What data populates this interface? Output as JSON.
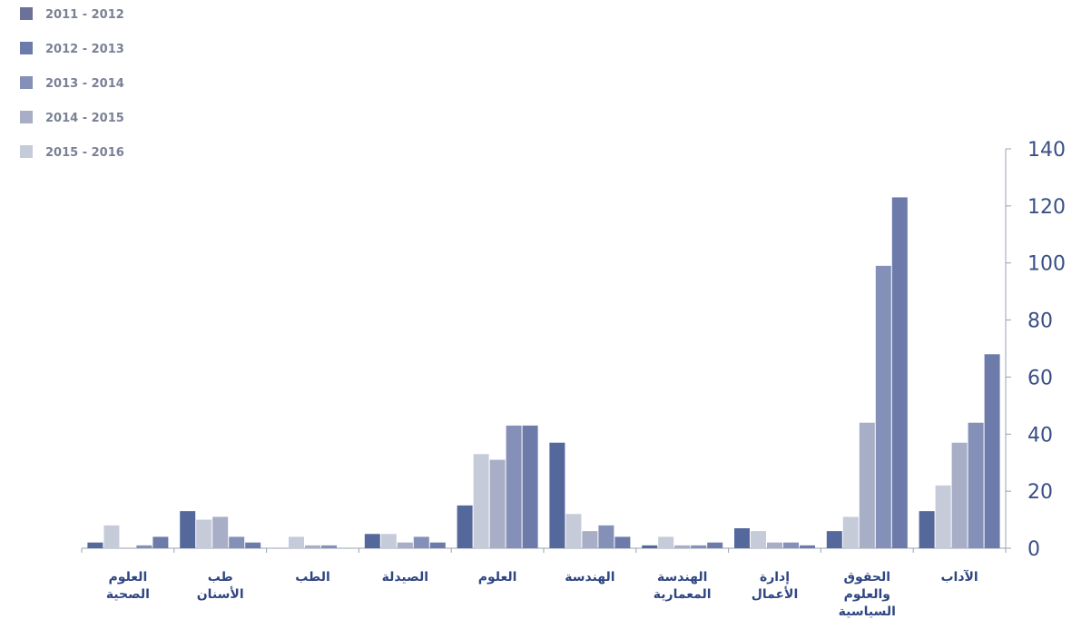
{
  "chart_data": {
    "type": "bar",
    "title": "",
    "xlabel": "",
    "ylabel": "",
    "ylim": [
      0,
      140
    ],
    "yticks": [
      0,
      20,
      40,
      60,
      80,
      100,
      120,
      140
    ],
    "y_axis_side": "right",
    "legend_position": "top-left",
    "categories": [
      [
        "العلوم",
        "الصحية"
      ],
      [
        "طب",
        "الأسنان"
      ],
      [
        "الطب"
      ],
      [
        "الصيدلة"
      ],
      [
        "العلوم"
      ],
      [
        "الهندسة"
      ],
      [
        "الهندسة",
        "المعمارية"
      ],
      [
        "إدارة",
        "الأعمال"
      ],
      [
        "الحقوق",
        "والعلوم",
        "السياسية"
      ],
      [
        "الآداب"
      ]
    ],
    "series": [
      {
        "name": "2011 - 2012",
        "color": "#55689c",
        "values": [
          2,
          13,
          0,
          5,
          15,
          37,
          1,
          7,
          6,
          13
        ]
      },
      {
        "name": "2015 - 2016",
        "color": "#c6cbda",
        "values": [
          8,
          10,
          4,
          5,
          33,
          12,
          4,
          6,
          11,
          22
        ]
      },
      {
        "name": "2014 - 2015",
        "color": "#a7aec6",
        "values": [
          0,
          11,
          1,
          2,
          31,
          6,
          1,
          2,
          44,
          37
        ]
      },
      {
        "name": "2013 - 2014",
        "color": "#8490b7",
        "values": [
          1,
          4,
          1,
          4,
          43,
          8,
          1,
          2,
          99,
          44
        ]
      },
      {
        "name": "2012 - 2013",
        "color": "#6c7ba9",
        "values": [
          4,
          2,
          0,
          2,
          43,
          4,
          2,
          1,
          123,
          68
        ]
      }
    ],
    "legend": [
      {
        "label": "2011 - 2012",
        "color": "#6c7297"
      },
      {
        "label": "2012 - 2013",
        "color": "#6c7ba9"
      },
      {
        "label": "2013 - 2014",
        "color": "#8490b7"
      },
      {
        "label": "2014 - 2015",
        "color": "#a7aec6"
      },
      {
        "label": "2015 - 2016",
        "color": "#c6cbda"
      }
    ]
  }
}
